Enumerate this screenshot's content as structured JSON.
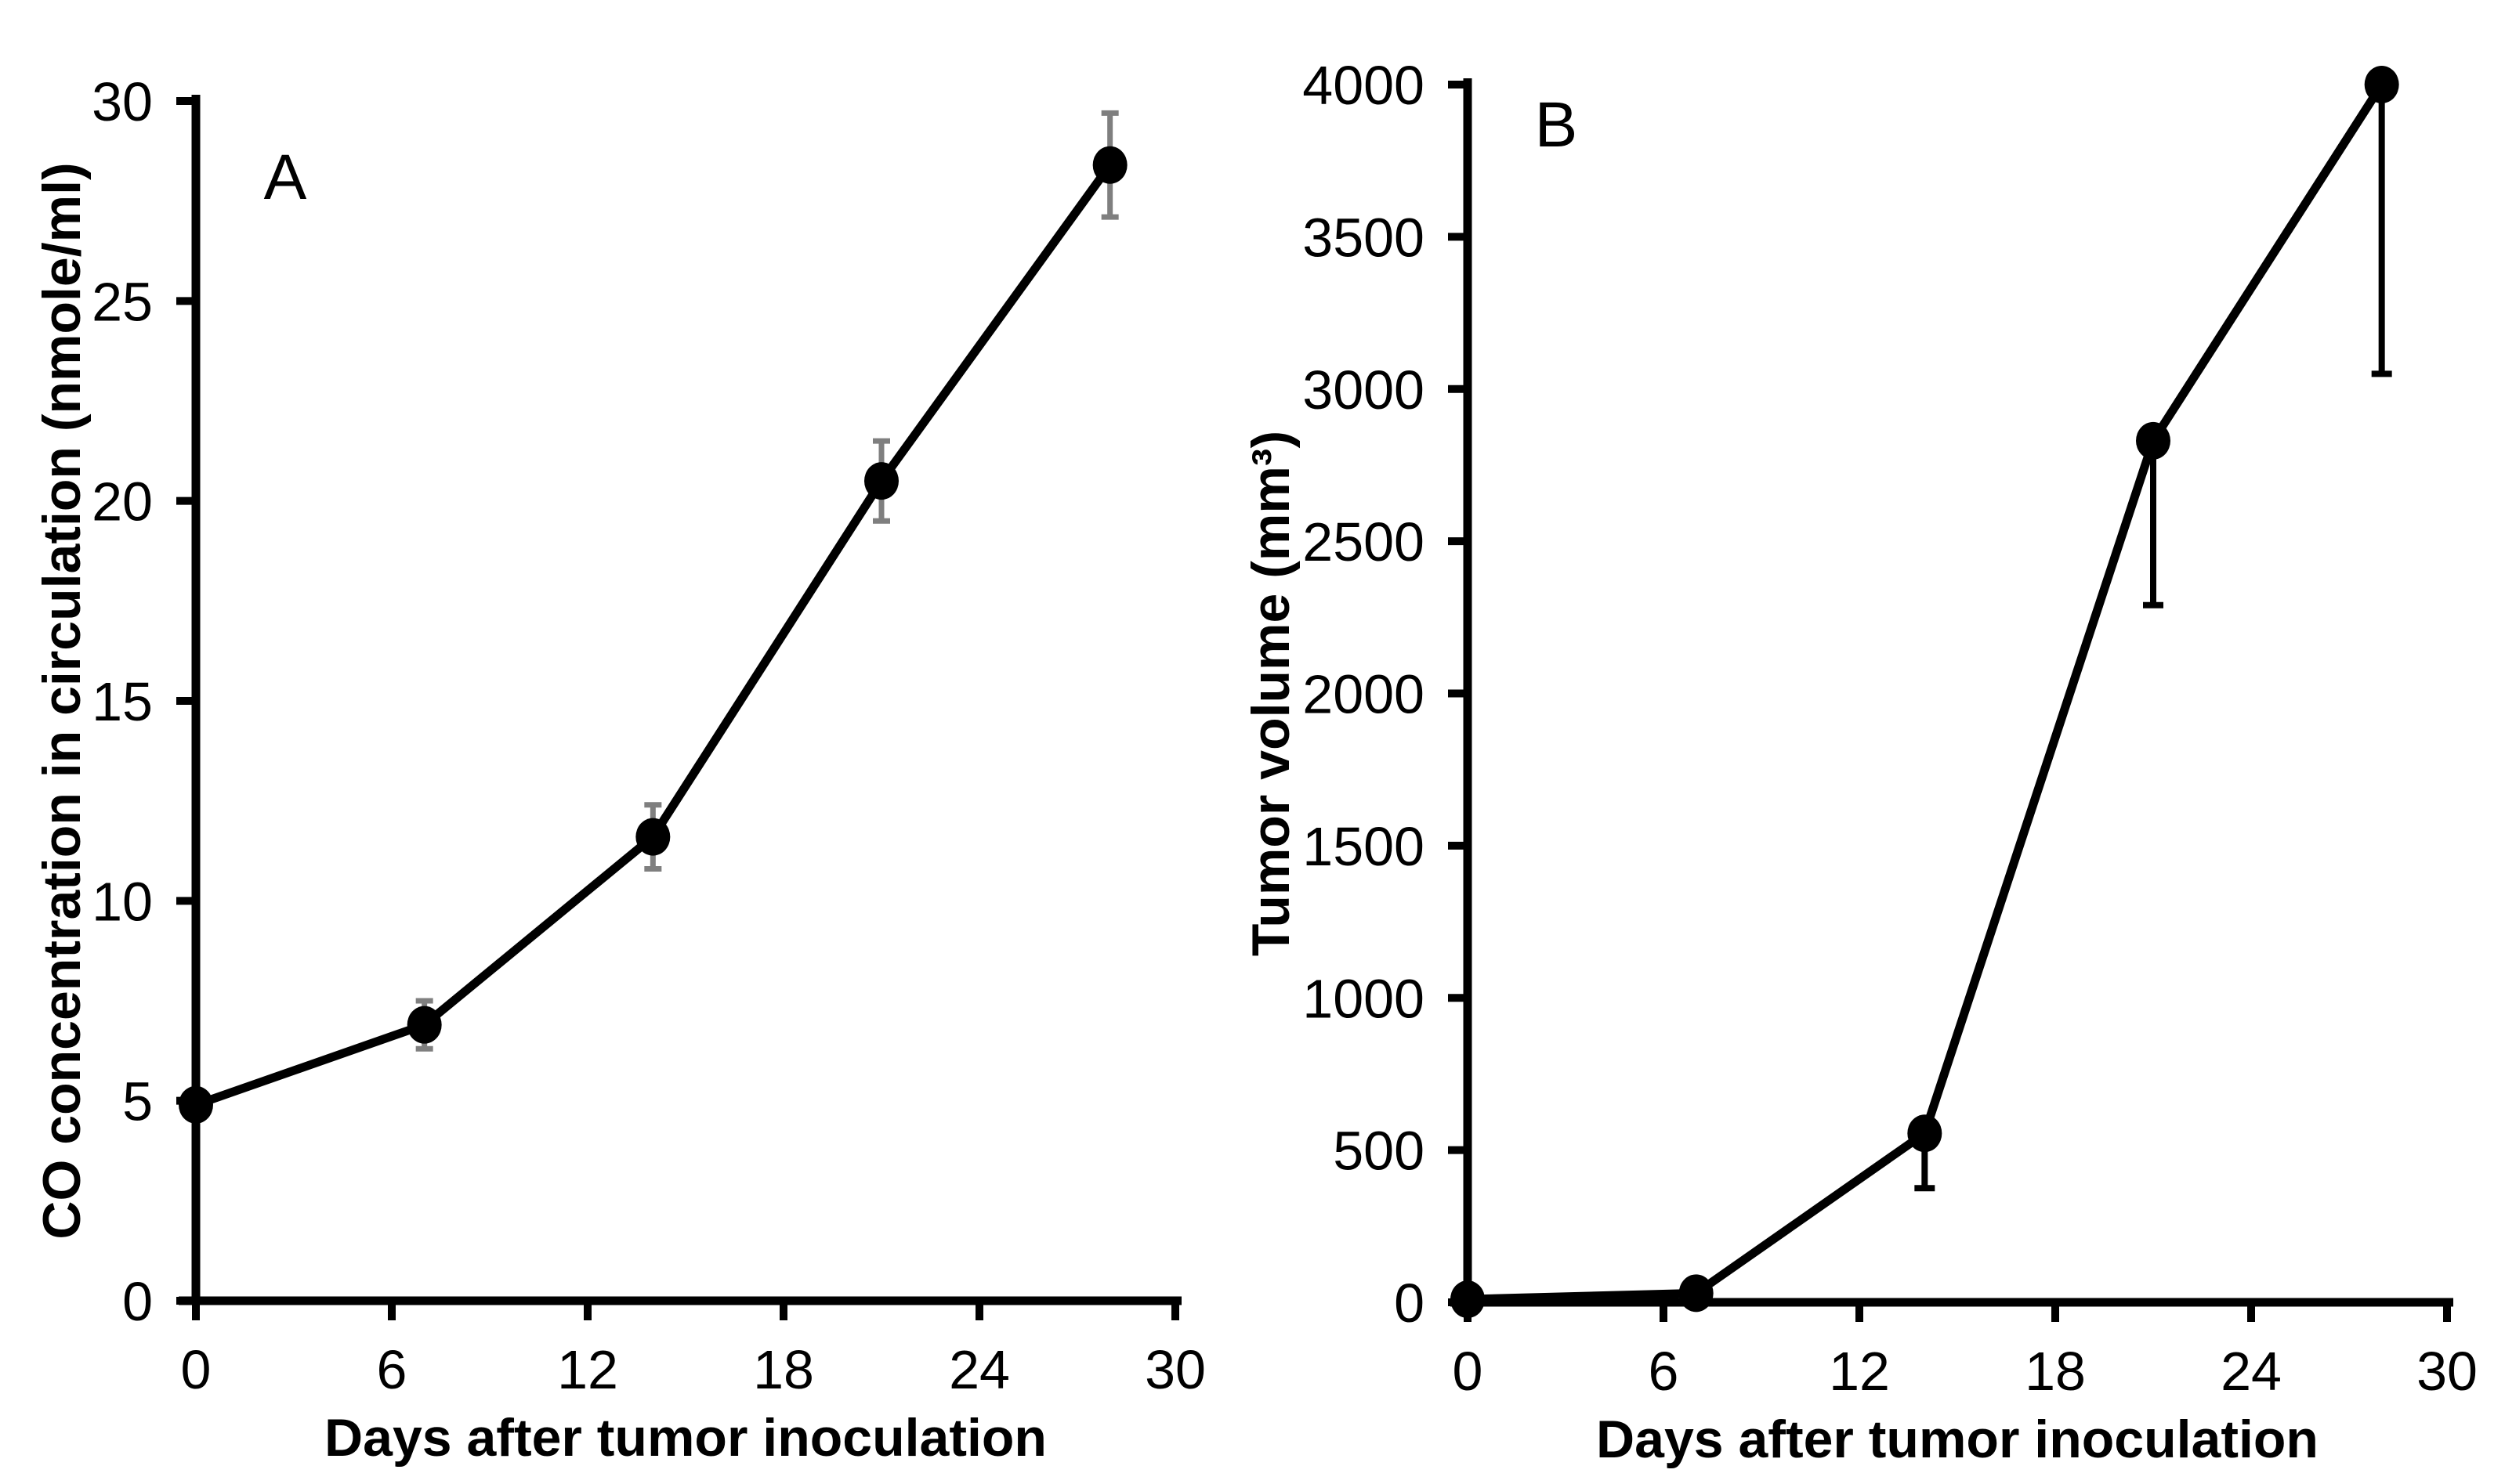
{
  "figure": {
    "background": "#ffffff",
    "foreground": "#000000",
    "panel_letters": [
      "A",
      "B"
    ]
  },
  "chart_data": [
    {
      "type": "line",
      "panel_label": "A",
      "xlabel": "Days after tumor inoculation",
      "ylabel": "CO concentration in circulation (nmole/ml)",
      "x": [
        0,
        7,
        14,
        21,
        28
      ],
      "y": [
        4.9,
        6.9,
        11.6,
        20.5,
        28.4
      ],
      "y_error": [
        0.3,
        0.6,
        0.8,
        1.0,
        1.3
      ],
      "error_direction": "both",
      "xlim": [
        0,
        30
      ],
      "ylim": [
        0,
        30
      ],
      "xticks": [
        0,
        6,
        12,
        18,
        24,
        30
      ],
      "yticks": [
        0,
        5,
        10,
        15,
        20,
        25,
        30
      ],
      "grid": false,
      "legend": "none",
      "line_color": "#000000",
      "marker": "filled-circle",
      "marker_color": "#000000",
      "error_color": "#7f7f7f"
    },
    {
      "type": "line",
      "panel_label": "B",
      "xlabel": "Days after tumor inoculation",
      "ylabel": "Tumor volume (mm³)",
      "x": [
        0,
        7,
        14,
        21,
        28
      ],
      "y": [
        10,
        30,
        555,
        2830,
        4000
      ],
      "y_error": [
        0,
        0,
        180,
        540,
        950
      ],
      "error_direction": "down",
      "xlim": [
        0,
        30
      ],
      "ylim": [
        0,
        4000
      ],
      "xticks": [
        0,
        6,
        12,
        18,
        24,
        30
      ],
      "yticks": [
        0,
        500,
        1000,
        1500,
        2000,
        2500,
        3000,
        3500,
        4000
      ],
      "grid": false,
      "legend": "none",
      "line_color": "#000000",
      "marker": "filled-circle",
      "marker_color": "#000000",
      "error_color": "#000000"
    }
  ]
}
